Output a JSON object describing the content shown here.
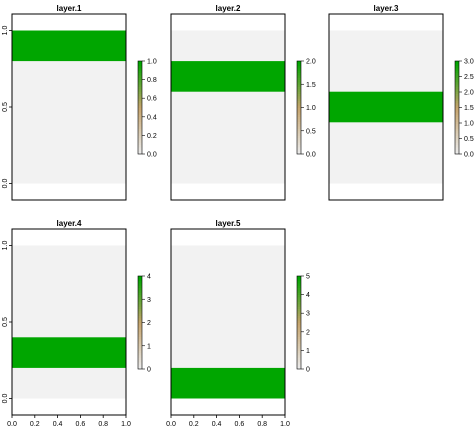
{
  "chart_data": {
    "type": "heatmap",
    "colors": {
      "low": "#f2f2f2",
      "high": "#00a600",
      "frame": "#000000"
    },
    "x_range": [
      0,
      1
    ],
    "y_range": [
      0,
      1
    ],
    "panels": [
      {
        "title": "layer.1",
        "band": [
          0.8,
          1.0
        ],
        "legend_min": 0,
        "legend_max": 1,
        "legend_ticks": [
          "0.0",
          "0.2",
          "0.4",
          "0.6",
          "0.8",
          "1.0"
        ],
        "y_ticks": [
          "0.0",
          "0.5",
          "1.0"
        ],
        "x_ticks": []
      },
      {
        "title": "layer.2",
        "band": [
          0.6,
          0.8
        ],
        "legend_min": 0,
        "legend_max": 2,
        "legend_ticks": [
          "0.0",
          "0.5",
          "1.0",
          "1.5",
          "2.0"
        ],
        "y_ticks": [],
        "x_ticks": []
      },
      {
        "title": "layer.3",
        "band": [
          0.4,
          0.6
        ],
        "legend_min": 0,
        "legend_max": 3,
        "legend_ticks": [
          "0.0",
          "0.5",
          "1.0",
          "1.5",
          "2.0",
          "2.5",
          "3.0"
        ],
        "y_ticks": [],
        "x_ticks": []
      },
      {
        "title": "layer.4",
        "band": [
          0.2,
          0.4
        ],
        "legend_min": 0,
        "legend_max": 4,
        "legend_ticks": [
          "0",
          "1",
          "2",
          "3",
          "4"
        ],
        "y_ticks": [
          "0.0",
          "0.5",
          "1.0"
        ],
        "x_ticks": [
          "0.0",
          "0.2",
          "0.4",
          "0.6",
          "0.8",
          "1.0"
        ]
      },
      {
        "title": "layer.5",
        "band": [
          0.0,
          0.2
        ],
        "legend_min": 0,
        "legend_max": 5,
        "legend_ticks": [
          "0",
          "1",
          "2",
          "3",
          "4",
          "5"
        ],
        "y_ticks": [],
        "x_ticks": [
          "0.0",
          "0.2",
          "0.4",
          "0.6",
          "0.8",
          "1.0"
        ]
      }
    ]
  }
}
